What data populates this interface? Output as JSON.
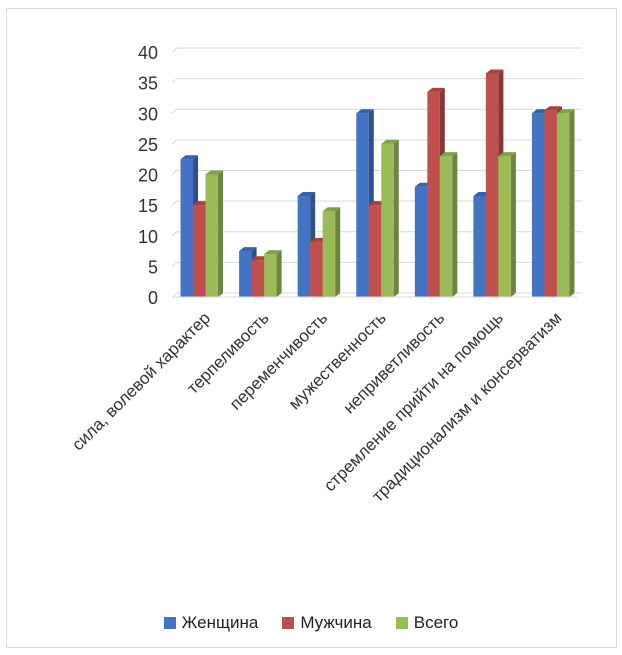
{
  "chart_data": {
    "type": "bar",
    "categories": [
      "сила, волевой характер",
      "терпеливость",
      "переменчивость",
      "мужественность",
      "неприветливость",
      "стремление прийти на помощь",
      "традиционализм и консерватизм"
    ],
    "series": [
      {
        "name": "Женщина",
        "color": "#4472C4",
        "values": [
          22.5,
          7.5,
          16.5,
          30,
          18,
          16.5,
          30
        ]
      },
      {
        "name": "Мужчина",
        "color": "#C0504D",
        "values": [
          15,
          6,
          9,
          15,
          33.5,
          36.5,
          30.5
        ]
      },
      {
        "name": "Всего",
        "color": "#9BBB59",
        "values": [
          20,
          7,
          14,
          25,
          23,
          23,
          30
        ]
      }
    ],
    "yticks": [
      "0",
      "5",
      "10",
      "15",
      "20",
      "25",
      "30",
      "35",
      "40"
    ],
    "ylim": [
      0,
      40
    ],
    "grid": true,
    "legend_position": "bottom",
    "style": "3d-clustered-column"
  }
}
